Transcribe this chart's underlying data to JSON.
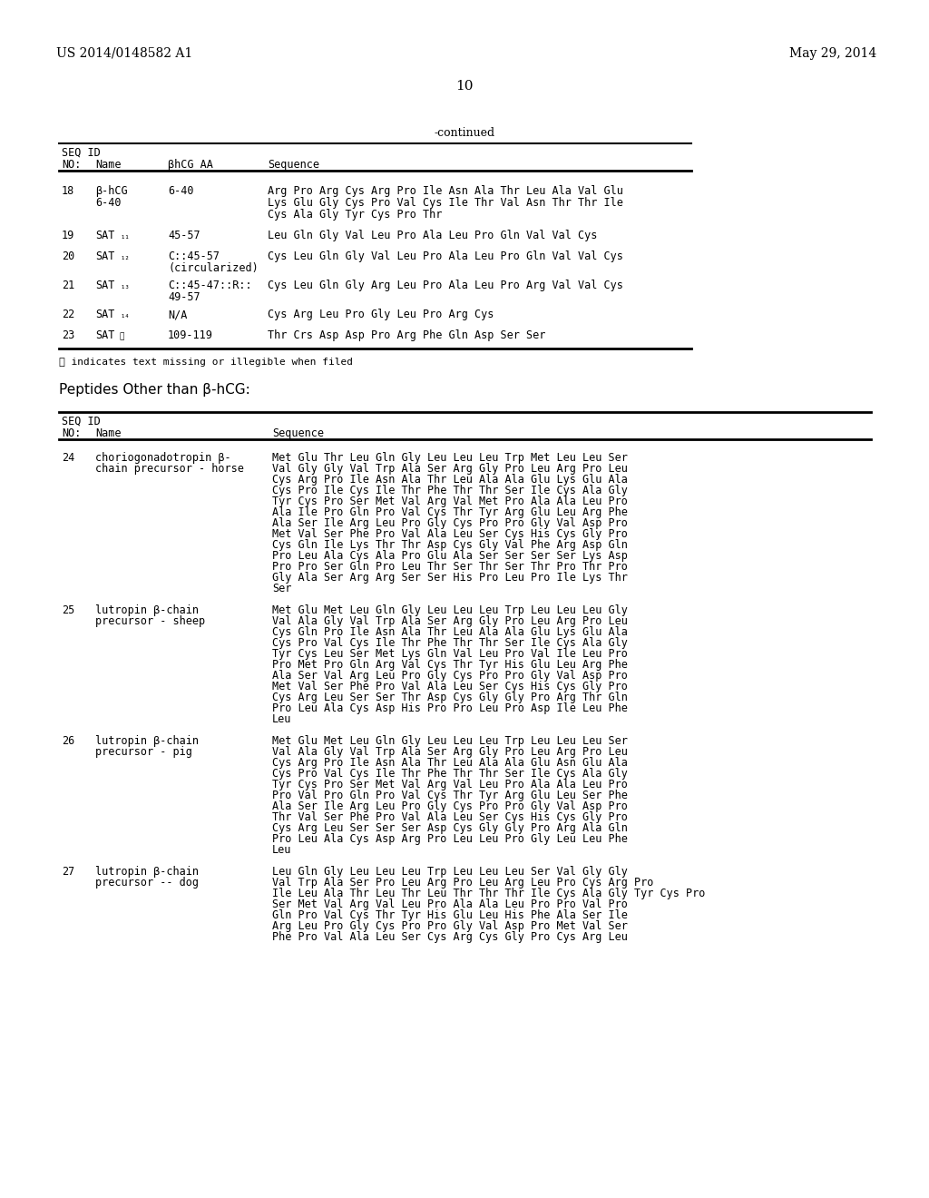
{
  "header_left": "US 2014/0148582 A1",
  "header_right": "May 29, 2014",
  "page_number": "10",
  "continued_label": "-continued",
  "bg_color": "#ffffff",
  "text_color": "#000000",
  "table1_rows": [
    {
      "no": "18",
      "name1": "β-hCG",
      "name2": "6-40",
      "aa": "6-40",
      "seq": [
        "Arg Pro Arg Cys Arg Pro Ile Asn Ala Thr Leu Ala Val Glu",
        "Lys Glu Gly Cys Pro Val Cys Ile Thr Val Asn Thr Thr Ile",
        "Cys Ala Gly Tyr Cys Pro Thr"
      ]
    },
    {
      "no": "19",
      "name1": "SAT₁₁",
      "name2": "",
      "aa": "45-57",
      "seq": [
        "Leu Gln Gly Val Leu Pro Ala Leu Pro Gln Val Val Cys"
      ]
    },
    {
      "no": "20",
      "name1": "SAT₁₂",
      "name2": "",
      "aa1": "C::45-57",
      "aa2": "(circularized)",
      "seq": [
        "Cys Leu Gln Gly Val Leu Pro Ala Leu Pro Gln Val Val Cys"
      ]
    },
    {
      "no": "21",
      "name1": "SAT₁₃",
      "name2": "",
      "aa1": "C::45-47::R::",
      "aa2": "49-57",
      "seq": [
        "Cys Leu Gln Gly Arg Leu Pro Ala Leu Pro Arg Val Val Cys"
      ]
    },
    {
      "no": "22",
      "name1": "SAT₁₄",
      "name2": "",
      "aa": "N/A",
      "seq": [
        "Cys Arg Leu Pro Gly Leu Pro Arg Cys"
      ]
    },
    {
      "no": "23",
      "name1": "SAT⒪",
      "name2": "",
      "aa": "109-119",
      "seq": [
        "Thr Crs Asp Asp Pro Arg Phe Gln Asp Ser Ser"
      ]
    }
  ],
  "footnote": "⒪ indicates text missing or illegible when filed",
  "peptides_heading": "Peptides Other than β-hCG:",
  "table2_rows": [
    {
      "no": "24",
      "name1": "choriogonadotropin β-",
      "name2": "chain precursor - horse",
      "seq": [
        "Met Glu Thr Leu Gln Gly Leu Leu Leu Trp Met Leu Leu Ser",
        "Val Gly Gly Val Trp Ala Ser Arg Gly Pro Leu Arg Pro Leu",
        "Cys Arg Pro Ile Asn Ala Thr Leu Ala Ala Glu Lys Glu Ala",
        "Cys Pro Ile Cys Ile Thr Phe Thr Thr Ser Ile Cys Ala Gly",
        "Tyr Cys Pro Ser Met Val Arg Val Met Pro Ala Ala Leu Pro",
        "Ala Ile Pro Gln Pro Val Cys Thr Tyr Arg Glu Leu Arg Phe",
        "Ala Ser Ile Arg Leu Pro Gly Cys Pro Pro Gly Val Asp Pro",
        "Met Val Ser Phe Pro Val Ala Leu Ser Cys His Cys Gly Pro",
        "Cys Gln Ile Lys Thr Thr Asp Cys Gly Val Phe Arg Asp Gln",
        "Pro Leu Ala Cys Ala Pro Glu Ala Ser Ser Ser Ser Lys Asp",
        "Pro Pro Ser Gln Pro Leu Thr Ser Thr Ser Thr Pro Thr Pro",
        "Gly Ala Ser Arg Arg Ser Ser His Pro Leu Pro Ile Lys Thr",
        "Ser"
      ]
    },
    {
      "no": "25",
      "name1": "lutropin β-chain",
      "name2": "precursor - sheep",
      "seq": [
        "Met Glu Met Leu Gln Gly Leu Leu Leu Trp Leu Leu Leu Gly",
        "Val Ala Gly Val Trp Ala Ser Arg Gly Pro Leu Arg Pro Leu",
        "Cys Gln Pro Ile Asn Ala Thr Leu Ala Ala Glu Lys Glu Ala",
        "Cys Pro Val Cys Ile Thr Phe Thr Thr Ser Ile Cys Ala Gly",
        "Tyr Cys Leu Ser Met Lys Gln Val Leu Pro Val Ile Leu Pro",
        "Pro Met Pro Gln Arg Val Cys Thr Tyr His Glu Leu Arg Phe",
        "Ala Ser Val Arg Leu Pro Gly Cys Pro Pro Gly Val Asp Pro",
        "Met Val Ser Phe Pro Val Ala Leu Ser Cys His Cys Gly Pro",
        "Cys Arg Leu Ser Ser Thr Asp Cys Gly Gly Pro Arg Thr Gln",
        "Pro Leu Ala Cys Asp His Pro Pro Leu Pro Asp Ile Leu Phe",
        "Leu"
      ]
    },
    {
      "no": "26",
      "name1": "lutropin β-chain",
      "name2": "precursor - pig",
      "seq": [
        "Met Glu Met Leu Gln Gly Leu Leu Leu Trp Leu Leu Leu Ser",
        "Val Ala Gly Val Trp Ala Ser Arg Gly Pro Leu Arg Pro Leu",
        "Cys Arg Pro Ile Asn Ala Thr Leu Ala Ala Glu Asn Glu Ala",
        "Cys Pro Val Cys Ile Thr Phe Thr Thr Ser Ile Cys Ala Gly",
        "Tyr Cys Pro Ser Met Val Arg Val Leu Pro Ala Ala Leu Pro",
        "Pro Val Pro Gln Pro Val Cys Thr Tyr Arg Glu Leu Ser Phe",
        "Ala Ser Ile Arg Leu Pro Gly Cys Pro Pro Gly Val Asp Pro",
        "Thr Val Ser Phe Pro Val Ala Leu Ser Cys His Cys Gly Pro",
        "Cys Arg Leu Ser Ser Ser Asp Cys Gly Gly Pro Arg Ala Gln",
        "Pro Leu Ala Cys Asp Arg Pro Leu Leu Pro Gly Leu Leu Phe",
        "Leu"
      ]
    },
    {
      "no": "27",
      "name1": "lutropin β-chain",
      "name2": "precursor -- dog",
      "seq": [
        "Leu Gln Gly Leu Leu Leu Trp Leu Leu Leu Ser Val Gly Gly",
        "Val Trp Ala Ser Pro Leu Arg Pro Leu Arg Leu Pro Cys Arg Pro",
        "Ile Leu Ala Thr Leu Thr Leu Thr Thr Thr Ile Cys Ala Gly Tyr Cys Pro",
        "Ser Met Val Arg Val Leu Pro Ala Ala Leu Pro Pro Val Pro",
        "Gln Pro Val Cys Thr Tyr His Glu Leu His Phe Ala Ser Ile",
        "Arg Leu Pro Gly Cys Pro Pro Gly Val Asp Pro Met Val Ser",
        "Phe Pro Val Ala Leu Ser Cys Arg Cys Gly Pro Cys Arg Leu"
      ]
    }
  ]
}
